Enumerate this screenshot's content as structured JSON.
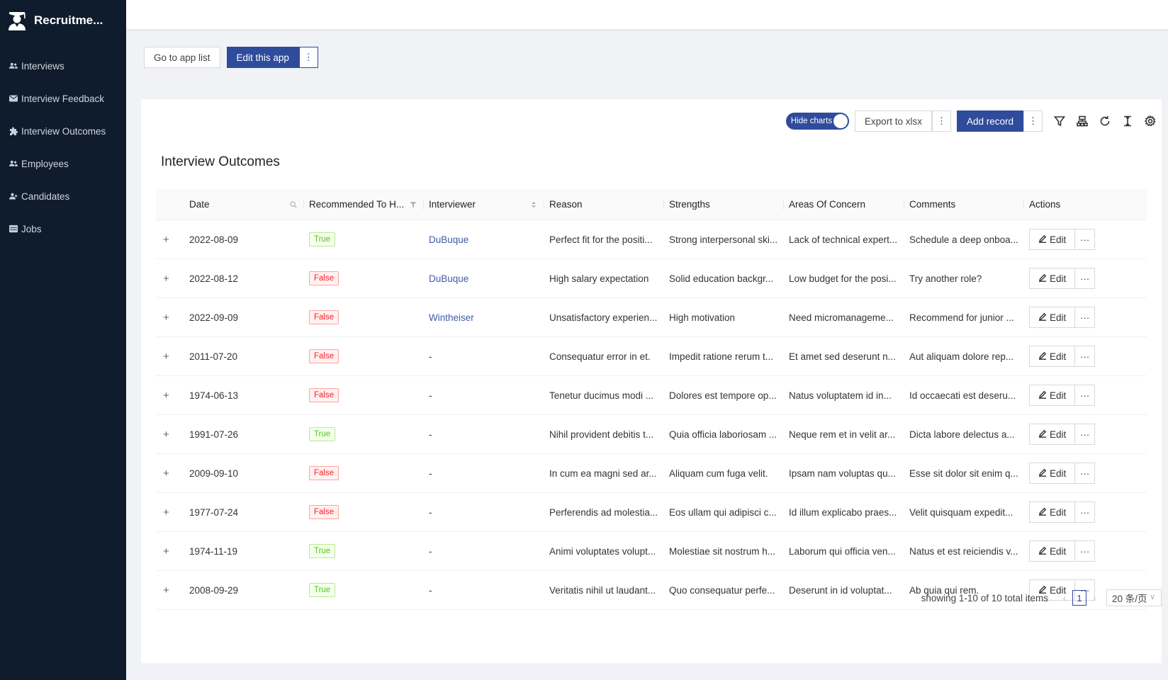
{
  "app": {
    "name": "Recruitme..."
  },
  "sidebar": {
    "items": [
      {
        "label": "Interviews",
        "icon": "users-icon"
      },
      {
        "label": "Interview Feedback",
        "icon": "envelope-icon"
      },
      {
        "label": "Interview Outcomes",
        "icon": "puzzle-icon"
      },
      {
        "label": "Employees",
        "icon": "users-icon"
      },
      {
        "label": "Candidates",
        "icon": "user-plus-icon"
      },
      {
        "label": "Jobs",
        "icon": "table-icon"
      }
    ]
  },
  "app_actions": {
    "go_to_list": "Go to app list",
    "edit_app": "Edit this app",
    "more": "⋮"
  },
  "toolbar": {
    "hide_charts": "Hide charts",
    "export": "Export to xlsx",
    "add_record": "Add record",
    "more": "⋮"
  },
  "page": {
    "title": "Interview Outcomes"
  },
  "table": {
    "columns": {
      "date": "Date",
      "recommended": "Recommended To H...",
      "interviewer": "Interviewer",
      "reason": "Reason",
      "strengths": "Strengths",
      "concern": "Areas Of Concern",
      "comments": "Comments",
      "actions": "Actions"
    },
    "expand": "+",
    "edit_label": "Edit",
    "more_label": "···",
    "rows": [
      {
        "date": "2022-08-09",
        "rec": "True",
        "interviewer": "DuBuque",
        "reason": "Perfect fit for the positi...",
        "strengths": "Strong interpersonal ski...",
        "concern": "Lack of technical expert...",
        "comments": "Schedule a deep onboa..."
      },
      {
        "date": "2022-08-12",
        "rec": "False",
        "interviewer": "DuBuque",
        "reason": "High salary expectation",
        "strengths": "Solid education backgr...",
        "concern": "Low budget for the posi...",
        "comments": "Try another role?"
      },
      {
        "date": "2022-09-09",
        "rec": "False",
        "interviewer": "Wintheiser",
        "reason": "Unsatisfactory experien...",
        "strengths": "High motivation",
        "concern": "Need micromanageme...",
        "comments": "Recommend for junior ..."
      },
      {
        "date": "2011-07-20",
        "rec": "False",
        "interviewer": "-",
        "reason": "Consequatur error in et.",
        "strengths": "Impedit ratione rerum t...",
        "concern": "Et amet sed deserunt n...",
        "comments": "Aut aliquam dolore rep..."
      },
      {
        "date": "1974-06-13",
        "rec": "False",
        "interviewer": "-",
        "reason": "Tenetur ducimus modi ...",
        "strengths": "Dolores est tempore op...",
        "concern": "Natus voluptatem id in...",
        "comments": "Id occaecati est deseru..."
      },
      {
        "date": "1991-07-26",
        "rec": "True",
        "interviewer": "-",
        "reason": "Nihil provident debitis t...",
        "strengths": "Quia officia laboriosam ...",
        "concern": "Neque rem et in velit ar...",
        "comments": "Dicta labore delectus a..."
      },
      {
        "date": "2009-09-10",
        "rec": "False",
        "interviewer": "-",
        "reason": "In cum ea magni sed ar...",
        "strengths": "Aliquam cum fuga velit.",
        "concern": "Ipsam nam voluptas qu...",
        "comments": "Esse sit dolor sit enim q..."
      },
      {
        "date": "1977-07-24",
        "rec": "False",
        "interviewer": "-",
        "reason": "Perferendis ad molestia...",
        "strengths": "Eos ullam qui adipisci c...",
        "concern": "Id illum explicabo praes...",
        "comments": "Velit quisquam expedit..."
      },
      {
        "date": "1974-11-19",
        "rec": "True",
        "interviewer": "-",
        "reason": "Animi voluptates volupt...",
        "strengths": "Molestiae sit nostrum h...",
        "concern": "Laborum qui officia ven...",
        "comments": "Natus et est reiciendis v..."
      },
      {
        "date": "2008-09-29",
        "rec": "True",
        "interviewer": "-",
        "reason": "Veritatis nihil ut laudant...",
        "strengths": "Quo consequatur perfe...",
        "concern": "Deserunt in id voluptat...",
        "comments": "Ab quia qui rem."
      }
    ]
  },
  "pagination": {
    "total_text": "showing 1-10 of 10 total items",
    "prev": "‹",
    "page": "1",
    "next": "›",
    "page_size": "20 条/页",
    "chevron": "∨"
  },
  "colors": {
    "sidebar_bg": "#0f1c2e",
    "primary": "#2f4b9b",
    "link": "#3f5ba8",
    "true_tag": "#52c41a",
    "false_tag": "#f5222d"
  }
}
